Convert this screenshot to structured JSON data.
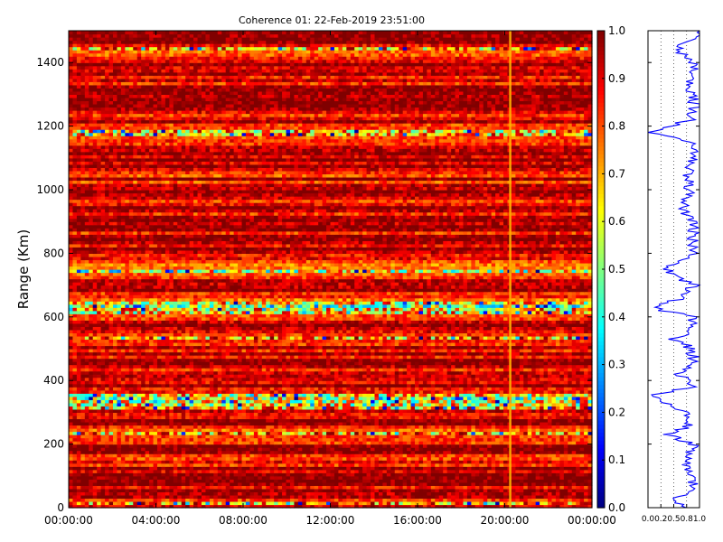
{
  "chart_data": [
    {
      "type": "heatmap",
      "title": "Coherence 01: 22-Feb-2019 23:51:00",
      "ylabel": "Range (Km)",
      "xlabel": "",
      "xticks": [
        "00:00:00",
        "04:00:00",
        "08:00:00",
        "12:00:00",
        "16:00:00",
        "20:00:00",
        "00:00:00"
      ],
      "xlim": [
        "00:00:00",
        "00:00:00"
      ],
      "ylim": [
        0,
        1500
      ],
      "yticks": [
        0,
        200,
        400,
        600,
        800,
        1000,
        1200,
        1400
      ],
      "colorbar": {
        "colormap": "jet",
        "range": [
          0.0,
          1.0
        ],
        "ticks": [
          "0.0",
          "0.1",
          "0.2",
          "0.3",
          "0.4",
          "0.5",
          "0.6",
          "0.7",
          "0.8",
          "0.9",
          "1.0"
        ]
      },
      "range_profile_coherence": [
        {
          "range": 0,
          "value": 0.8
        },
        {
          "range": 20,
          "value": 0.45
        },
        {
          "range": 50,
          "value": 0.85
        },
        {
          "range": 100,
          "value": 0.92
        },
        {
          "range": 150,
          "value": 0.7
        },
        {
          "range": 200,
          "value": 0.88
        },
        {
          "range": 230,
          "value": 0.4
        },
        {
          "range": 260,
          "value": 0.82
        },
        {
          "range": 300,
          "value": 0.75
        },
        {
          "range": 350,
          "value": 0.05
        },
        {
          "range": 380,
          "value": 0.85
        },
        {
          "range": 400,
          "value": 0.9
        },
        {
          "range": 420,
          "value": 0.6
        },
        {
          "range": 450,
          "value": 0.88
        },
        {
          "range": 500,
          "value": 0.86
        },
        {
          "range": 530,
          "value": 0.5
        },
        {
          "range": 560,
          "value": 0.88
        },
        {
          "range": 600,
          "value": 0.85
        },
        {
          "range": 630,
          "value": 0.05
        },
        {
          "range": 660,
          "value": 0.7
        },
        {
          "range": 700,
          "value": 0.9
        },
        {
          "range": 740,
          "value": 0.35
        },
        {
          "range": 770,
          "value": 0.5
        },
        {
          "range": 800,
          "value": 0.85
        },
        {
          "range": 850,
          "value": 0.88
        },
        {
          "range": 900,
          "value": 0.9
        },
        {
          "range": 930,
          "value": 0.7
        },
        {
          "range": 1000,
          "value": 0.8
        },
        {
          "range": 1040,
          "value": 0.75
        },
        {
          "range": 1100,
          "value": 0.92
        },
        {
          "range": 1150,
          "value": 0.88
        },
        {
          "range": 1180,
          "value": 0.02
        },
        {
          "range": 1220,
          "value": 0.85
        },
        {
          "range": 1250,
          "value": 0.9
        },
        {
          "range": 1300,
          "value": 0.88
        },
        {
          "range": 1350,
          "value": 0.8
        },
        {
          "range": 1400,
          "value": 0.9
        },
        {
          "range": 1440,
          "value": 0.55
        },
        {
          "range": 1480,
          "value": 0.95
        }
      ],
      "profile_xticks": [
        "0.0",
        "0.2",
        "0.5",
        "0.8",
        "1.0"
      ]
    }
  ]
}
